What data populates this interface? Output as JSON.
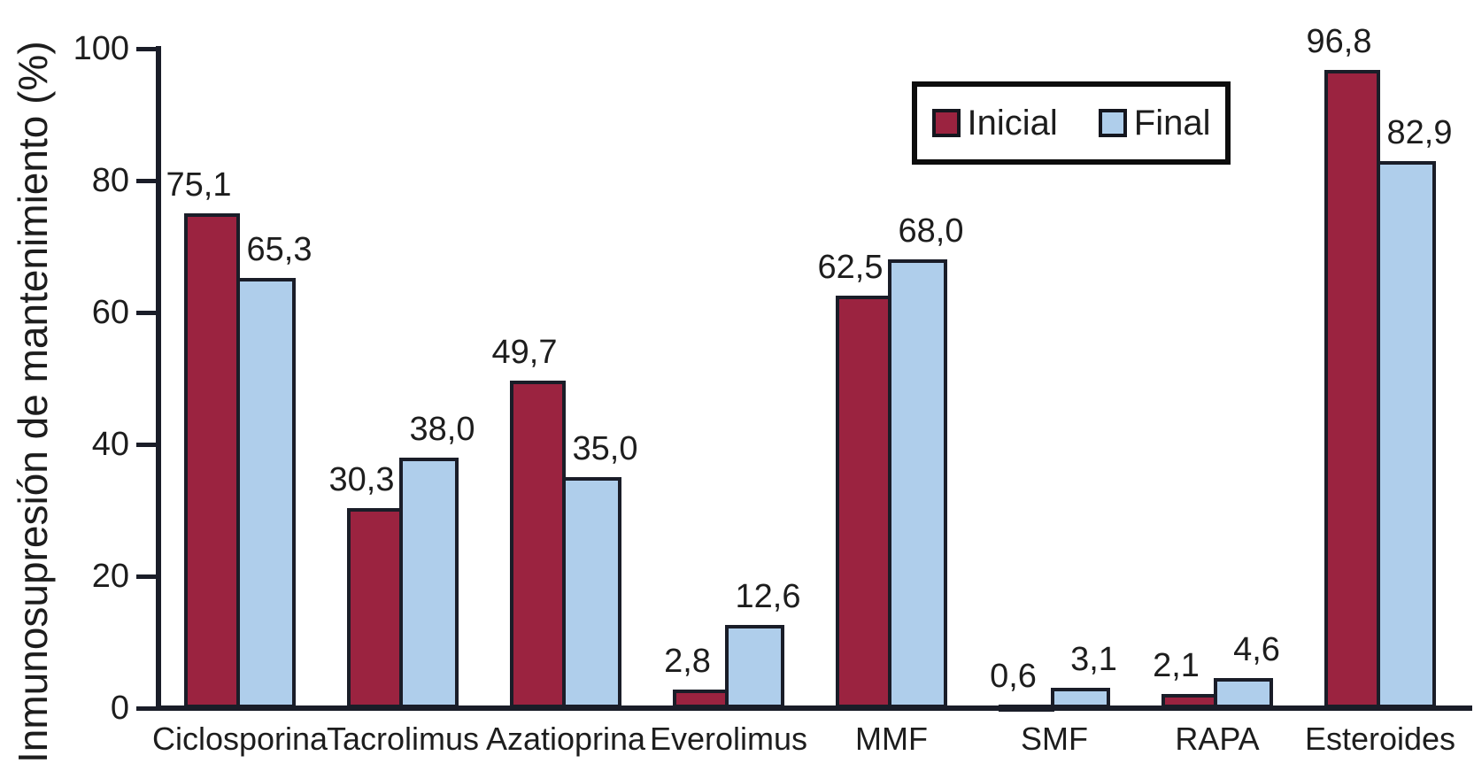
{
  "chart_data": {
    "type": "bar",
    "title": "",
    "xlabel": "",
    "ylabel": "Inmunosupresión de mantenimiento (%)",
    "ylim": [
      0,
      100
    ],
    "yticks": [
      "0",
      "20",
      "40",
      "60",
      "80",
      "100"
    ],
    "ytick_values": [
      0,
      20,
      40,
      60,
      80,
      100
    ],
    "grid": false,
    "legend_position": "top-right",
    "categories": [
      "Ciclosporina",
      "Tacrolimus",
      "Azatioprina",
      "Everolimus",
      "MMF",
      "SMF",
      "RAPA",
      "Esteroides"
    ],
    "series": [
      {
        "name": "Inicial",
        "color": "#9b2340",
        "values": [
          75.1,
          30.3,
          49.7,
          2.8,
          62.5,
          0.6,
          2.1,
          96.8
        ],
        "value_labels": [
          "75,1",
          "30,3",
          "49,7",
          "2,8",
          "62,5",
          "0,6",
          "2,1",
          "96,8"
        ]
      },
      {
        "name": "Final",
        "color": "#afceeb",
        "values": [
          65.3,
          38.0,
          35.0,
          12.6,
          68.0,
          3.1,
          4.6,
          82.9
        ],
        "value_labels": [
          "65,3",
          "38,0",
          "35,0",
          "12,6",
          "68,0",
          "3,1",
          "4,6",
          "82,9"
        ]
      }
    ]
  },
  "colors": {
    "bar_outline": "#1a1d28",
    "axis": "#1a1d28",
    "text": "#1d1d1d",
    "background": "#ffffff",
    "inicial": "#9b2340",
    "final": "#afceeb"
  }
}
